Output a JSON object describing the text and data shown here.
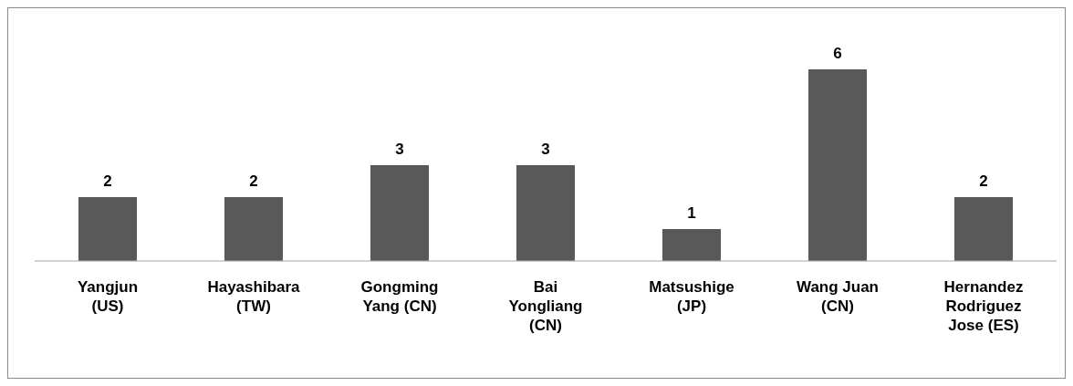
{
  "chart_data": {
    "type": "bar",
    "categories": [
      "Yangjun (US)",
      "Hayashibara (TW)",
      "Gongming Yang (CN)",
      "Bai Yongliang (CN)",
      "Matsushige (JP)",
      "Wang Juan (CN)",
      "Hernandez Rodriguez Jose (ES)"
    ],
    "values": [
      2,
      2,
      3,
      3,
      1,
      6,
      2
    ],
    "color": "#595959",
    "data_labels": true
  }
}
